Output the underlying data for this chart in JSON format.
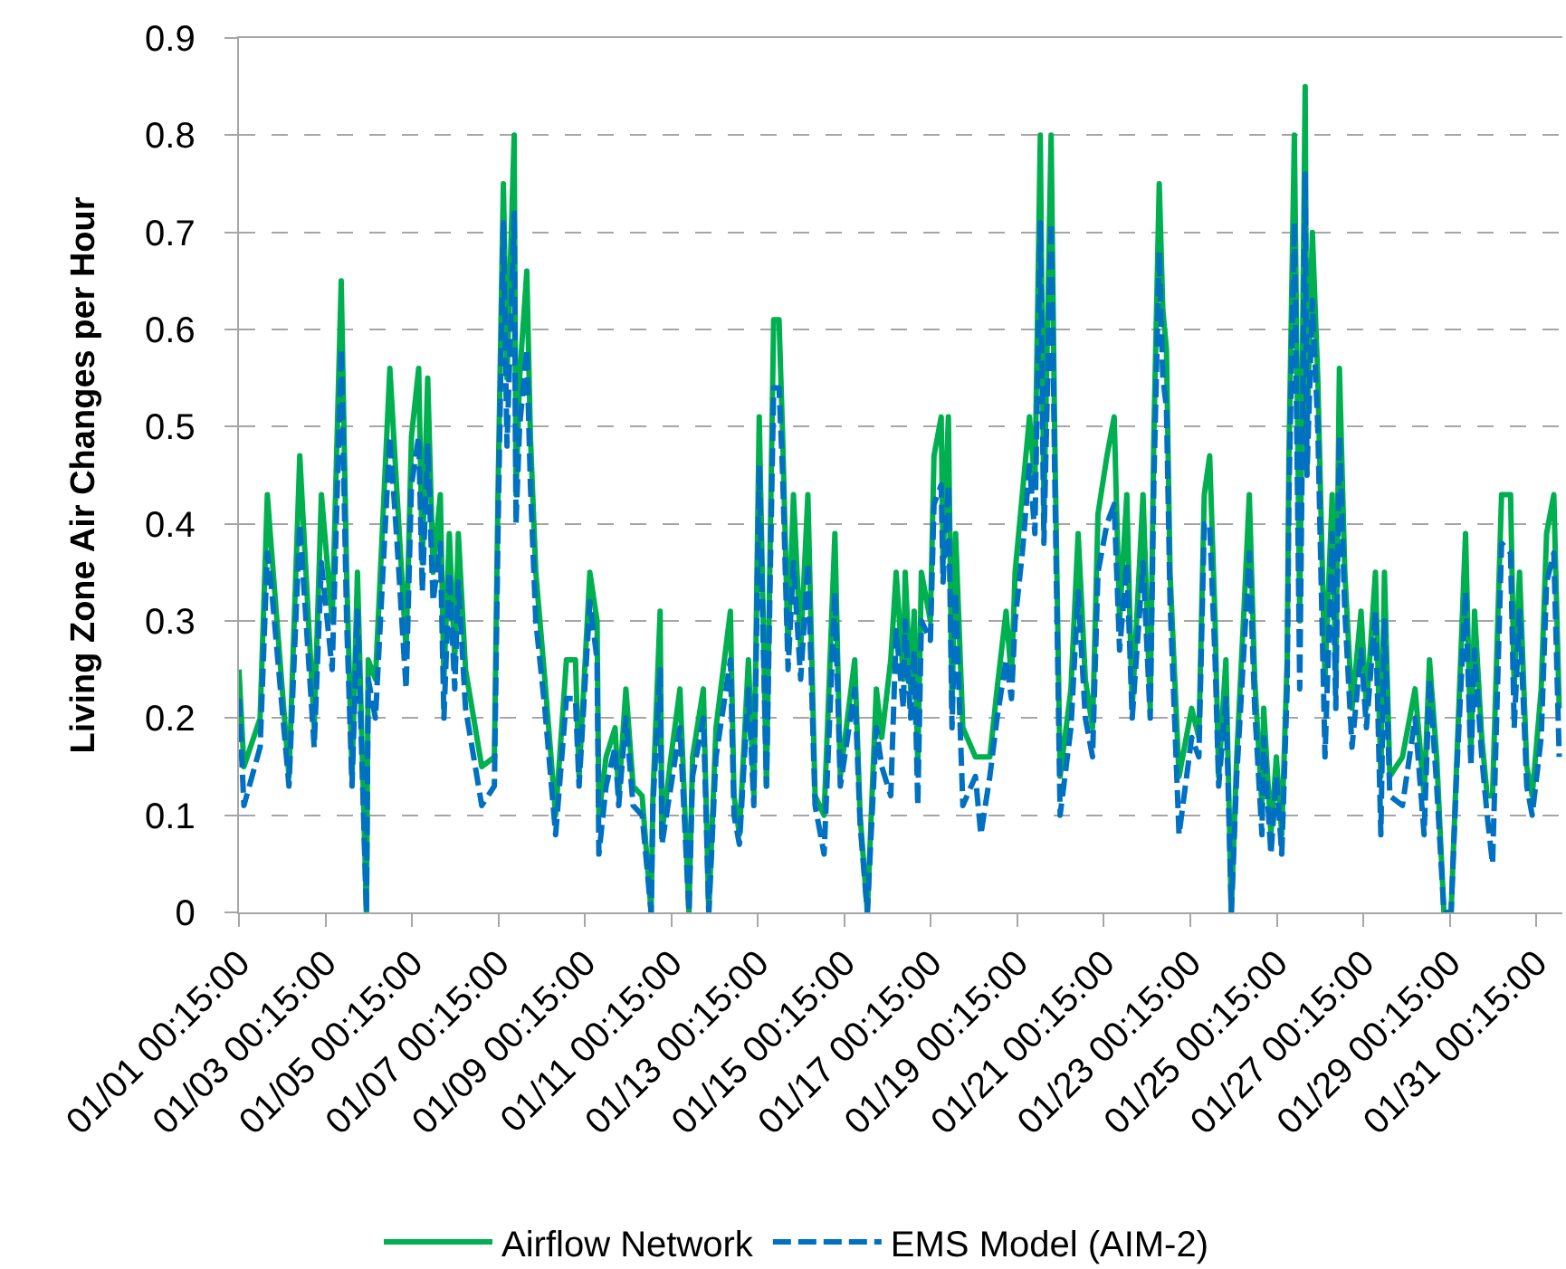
{
  "chart_data": {
    "type": "line",
    "ylabel": "Living Zone Air Changes per Hour",
    "x": [
      "--01-01T00:15",
      "--01-01T03:00",
      "--01-01T12:00",
      "--01-01T16:00",
      "--01-01T18:00",
      "--01-02T04:00",
      "--01-02T10:00",
      "--01-02T18:00",
      "--01-02T22:00",
      "--01-03T04:00",
      "--01-03T09:00",
      "--01-03T12:00",
      "--01-03T15:00",
      "--01-03T18:00",
      "--01-03T23:00",
      "--01-04T00:00",
      "--01-04T04:00",
      "--01-04T12:00",
      "--01-04T16:00",
      "--01-04T21:00",
      "--01-05T00:00",
      "--01-05T04:00",
      "--01-05T06:00",
      "--01-05T09:00",
      "--01-05T12:00",
      "--01-05T16:00",
      "--01-05T18:00",
      "--01-05T21:00",
      "--01-06T00:00",
      "--01-06T02:00",
      "--01-06T06:00",
      "--01-06T15:00",
      "--01-06T22:00",
      "--01-07T00:00",
      "--01-07T03:00",
      "--01-07T05:00",
      "--01-07T09:00",
      "--01-07T10:00",
      "--01-07T12:00",
      "--01-07T16:00",
      "--01-07T18:00",
      "--01-07T21:00",
      "--01-08T02:00",
      "--01-08T08:00",
      "--01-08T14:00",
      "--01-08T19:00",
      "--01-08T21:00",
      "--01-09T03:00",
      "--01-09T07:00",
      "--01-09T08:00",
      "--01-09T12:00",
      "--01-09T17:00",
      "--01-09T19:00",
      "--01-09T23:00",
      "--01-10T03:00",
      "--01-10T08:00",
      "--01-10T13:00",
      "--01-10T14:00",
      "--01-10T18:00",
      "--01-10T19:00",
      "--01-11T00:00",
      "--01-11T05:00",
      "--01-11T10:00",
      "--01-11T12:00",
      "--01-11T18:00",
      "--01-11T21:00",
      "--01-12T01:00",
      "--01-12T09:00",
      "--01-12T11:00",
      "--01-12T14:00",
      "--01-12T19:00",
      "--01-12T22:00",
      "--01-13T01:00",
      "--01-13T05:00",
      "--01-13T09:00",
      "--01-13T12:00",
      "--01-13T14:00",
      "--01-13T17:00",
      "--01-13T20:00",
      "--01-14T00:00",
      "--01-14T04:00",
      "--01-14T08:00",
      "--01-14T13:00",
      "--01-14T19:00",
      "--01-14T22:00",
      "--01-15T06:00",
      "--01-15T09:00",
      "--01-15T13:00",
      "--01-15T18:00",
      "--01-15T21:00",
      "--01-16T02:00",
      "--01-16T05:00",
      "--01-16T09:00",
      "--01-16T10:00",
      "--01-16T13:00",
      "--01-16T15:00",
      "--01-16T17:00",
      "--01-16T19:00",
      "--01-17T00:00",
      "--01-17T02:00",
      "--01-17T06:00",
      "--01-17T07:00",
      "--01-17T10:00",
      "--01-17T12:00",
      "--01-17T14:00",
      "--01-17T18:00",
      "--01-18T01:00",
      "--01-18T04:00",
      "--01-18T09:00",
      "--01-18T13:00",
      "--01-18T18:00",
      "--01-18T21:00",
      "--01-18T23:00",
      "--01-19T03:00",
      "--01-19T07:00",
      "--01-19T10:00",
      "--01-19T13:00",
      "--01-19T15:00",
      "--01-19T19:00",
      "--01-19T21:00",
      "--01-20T00:00",
      "--01-20T06:00",
      "--01-20T10:00",
      "--01-20T14:00",
      "--01-20T18:00",
      "--01-20T21:00",
      "--01-21T02:00",
      "--01-21T06:00",
      "--01-21T09:00",
      "--01-21T13:00",
      "--01-21T16:00",
      "--01-21T22:00",
      "--01-22T02:00",
      "--01-22T04:00",
      "--01-22T07:00",
      "--01-22T09:00",
      "--01-22T11:00",
      "--01-22T13:00",
      "--01-22T18:00",
      "--01-23T01:00",
      "--01-23T05:00",
      "--01-23T08:00",
      "--01-23T11:00",
      "--01-23T14:00",
      "--01-23T16:00",
      "--01-23T20:00",
      "--01-23T23:00",
      "--01-24T02:00",
      "--01-24T06:00",
      "--01-24T09:00",
      "--01-24T12:00",
      "--01-24T16:00",
      "--01-24T17:00",
      "--01-24T21:00",
      "--01-25T00:00",
      "--01-25T03:00",
      "--01-25T06:00",
      "--01-25T07:00",
      "--01-25T10:00",
      "--01-25T13:00",
      "--01-25T16:00",
      "--01-25T17:00",
      "--01-25T20:00",
      "--01-25T23:00",
      "--01-26T03:00",
      "--01-26T07:00",
      "--01-26T09:00",
      "--01-26T11:00",
      "--01-26T14:00",
      "--01-26T18:00",
      "--01-26T23:00",
      "--01-27T02:00",
      "--01-27T07:00",
      "--01-27T10:00",
      "--01-27T12:00",
      "--01-27T15:00",
      "--01-27T22:00",
      "--01-28T05:00",
      "--01-28T10:00",
      "--01-28T13:00",
      "--01-28T17:00",
      "--01-28T21:00",
      "--01-29T01:00",
      "--01-29T04:00",
      "--01-29T09:00",
      "--01-29T12:00",
      "--01-29T14:00",
      "--01-29T18:00",
      "--01-29T21:00",
      "--01-30T00:00",
      "--01-30T05:00",
      "--01-30T10:00",
      "--01-30T12:00",
      "--01-30T15:00",
      "--01-30T19:00",
      "--01-30T22:00",
      "--01-31T03:00",
      "--01-31T06:00",
      "--01-31T10:00",
      "--01-31T13:00"
    ],
    "series": [
      {
        "name": "Airflow Network",
        "color": "#00b050",
        "line_style": "solid",
        "values": [
          0.25,
          0.15,
          0.2,
          0.43,
          0.38,
          0.14,
          0.47,
          0.19,
          0.43,
          0.3,
          0.65,
          0.35,
          0.14,
          0.35,
          0,
          0.26,
          0.24,
          0.56,
          0.43,
          0.27,
          0.49,
          0.56,
          0.36,
          0.55,
          0.35,
          0.43,
          0.24,
          0.39,
          0.26,
          0.39,
          0.25,
          0.15,
          0.16,
          0.43,
          0.75,
          0.55,
          0.8,
          0.43,
          0.55,
          0.66,
          0.49,
          0.35,
          0.24,
          0.1,
          0.26,
          0.26,
          0.14,
          0.35,
          0.3,
          0.1,
          0.16,
          0.19,
          0.12,
          0.23,
          0.13,
          0.12,
          0,
          0.12,
          0.31,
          0.08,
          0.16,
          0.23,
          0,
          0.16,
          0.23,
          0,
          0.19,
          0.31,
          0.12,
          0.08,
          0.26,
          0.12,
          0.51,
          0.13,
          0.61,
          0.61,
          0.49,
          0.27,
          0.43,
          0.27,
          0.43,
          0.12,
          0.1,
          0.39,
          0.14,
          0.26,
          0.1,
          0,
          0.23,
          0.18,
          0.26,
          0.35,
          0.24,
          0.35,
          0.23,
          0.31,
          0.15,
          0.35,
          0.3,
          0.47,
          0.51,
          0.36,
          0.51,
          0.21,
          0.39,
          0.19,
          0.16,
          0.16,
          0.16,
          0.23,
          0.31,
          0.24,
          0.35,
          0.43,
          0.51,
          0.44,
          0.8,
          0.41,
          0.8,
          0.49,
          0.14,
          0.23,
          0.39,
          0.24,
          0.19,
          0.41,
          0.47,
          0.51,
          0.3,
          0.43,
          0.21,
          0.43,
          0.21,
          0.49,
          0.75,
          0.62,
          0.58,
          0.35,
          0.14,
          0.21,
          0.18,
          0.43,
          0.47,
          0.3,
          0.14,
          0.26,
          0,
          0.16,
          0.31,
          0.43,
          0.24,
          0.11,
          0.21,
          0.08,
          0.16,
          0.08,
          0.26,
          0.47,
          0.8,
          0.3,
          0.85,
          0.49,
          0.7,
          0.55,
          0.24,
          0.43,
          0.24,
          0.56,
          0.35,
          0.21,
          0.31,
          0.21,
          0.35,
          0.14,
          0.35,
          0.14,
          0.16,
          0.23,
          0.12,
          0.26,
          0.16,
          0,
          0,
          0.15,
          0.39,
          0.16,
          0.31,
          0.18,
          0.12,
          0.12,
          0.43,
          0.43,
          0.23,
          0.35,
          0.15,
          0.12,
          0.23,
          0.39,
          0.43,
          0.21
        ]
      },
      {
        "name": "EMS Model (AIM-2)",
        "color": "#0070c0",
        "line_style": "dashed",
        "values": [
          0.22,
          0.11,
          0.17,
          0.37,
          0.34,
          0.13,
          0.4,
          0.17,
          0.36,
          0.25,
          0.58,
          0.3,
          0.13,
          0.31,
          0,
          0.24,
          0.2,
          0.49,
          0.38,
          0.23,
          0.44,
          0.49,
          0.33,
          0.48,
          0.32,
          0.38,
          0.2,
          0.35,
          0.23,
          0.34,
          0.21,
          0.11,
          0.13,
          0.39,
          0.71,
          0.48,
          0.72,
          0.4,
          0.5,
          0.58,
          0.44,
          0.3,
          0.21,
          0.08,
          0.22,
          0.22,
          0.13,
          0.32,
          0.26,
          0.06,
          0.13,
          0.17,
          0.11,
          0.2,
          0.11,
          0.1,
          0,
          0.11,
          0.25,
          0.07,
          0.13,
          0.19,
          0,
          0.14,
          0.2,
          0,
          0.16,
          0.26,
          0.1,
          0.07,
          0.23,
          0.11,
          0.46,
          0.13,
          0.54,
          0.54,
          0.45,
          0.25,
          0.36,
          0.24,
          0.36,
          0.11,
          0.06,
          0.33,
          0.13,
          0.23,
          0.09,
          0,
          0.19,
          0.15,
          0.12,
          0.29,
          0.21,
          0.3,
          0.2,
          0.27,
          0.11,
          0.3,
          0.28,
          0.42,
          0.44,
          0.34,
          0.44,
          0.19,
          0.33,
          0.11,
          0.14,
          0.08,
          0.14,
          0.2,
          0.26,
          0.22,
          0.3,
          0.37,
          0.46,
          0.39,
          0.71,
          0.38,
          0.71,
          0.45,
          0.1,
          0.19,
          0.33,
          0.2,
          0.16,
          0.35,
          0.4,
          0.42,
          0.27,
          0.36,
          0.2,
          0.36,
          0.2,
          0.44,
          0.68,
          0.55,
          0.52,
          0.32,
          0.08,
          0.18,
          0.16,
          0.4,
          0.4,
          0.26,
          0.13,
          0.22,
          0,
          0.14,
          0.27,
          0.37,
          0.21,
          0.08,
          0.18,
          0.06,
          0.14,
          0.06,
          0.23,
          0.43,
          0.71,
          0.23,
          0.76,
          0.45,
          0.63,
          0.5,
          0.16,
          0.39,
          0.21,
          0.49,
          0.31,
          0.17,
          0.27,
          0.19,
          0.31,
          0.08,
          0.3,
          0.12,
          0.11,
          0.2,
          0.08,
          0.24,
          0.13,
          0,
          0,
          0.14,
          0.33,
          0.15,
          0.27,
          0.16,
          0.1,
          0.05,
          0.38,
          0.37,
          0.19,
          0.31,
          0.13,
          0.1,
          0.18,
          0.34,
          0.37,
          0.16
        ]
      }
    ],
    "xlim": [
      "--01-01T00:15",
      "--01-31T14:45"
    ],
    "xticks": [
      {
        "value": "--01-01T00:15",
        "label": "01/01 00:15:00"
      },
      {
        "value": "--01-03T00:15",
        "label": "01/03 00:15:00"
      },
      {
        "value": "--01-05T00:15",
        "label": "01/05 00:15:00"
      },
      {
        "value": "--01-07T00:15",
        "label": "01/07 00:15:00"
      },
      {
        "value": "--01-09T00:15",
        "label": "01/09 00:15:00"
      },
      {
        "value": "--01-11T00:15",
        "label": "01/11 00:15:00"
      },
      {
        "value": "--01-13T00:15",
        "label": "01/13 00:15:00"
      },
      {
        "value": "--01-15T00:15",
        "label": "01/15 00:15:00"
      },
      {
        "value": "--01-17T00:15",
        "label": "01/17 00:15:00"
      },
      {
        "value": "--01-19T00:15",
        "label": "01/19 00:15:00"
      },
      {
        "value": "--01-21T00:15",
        "label": "01/21 00:15:00"
      },
      {
        "value": "--01-23T00:15",
        "label": "01/23 00:15:00"
      },
      {
        "value": "--01-25T00:15",
        "label": "01/25 00:15:00"
      },
      {
        "value": "--01-27T00:15",
        "label": "01/27 00:15:00"
      },
      {
        "value": "--01-29T00:15",
        "label": "01/29 00:15:00"
      },
      {
        "value": "--01-31T00:15",
        "label": "01/31 00:15:00"
      }
    ],
    "ylim": [
      0,
      0.9
    ],
    "yticks": [
      0,
      0.1,
      0.2,
      0.3,
      0.4,
      0.5,
      0.6,
      0.7,
      0.8,
      0.9
    ],
    "grid": "y",
    "legend": "bottom"
  }
}
